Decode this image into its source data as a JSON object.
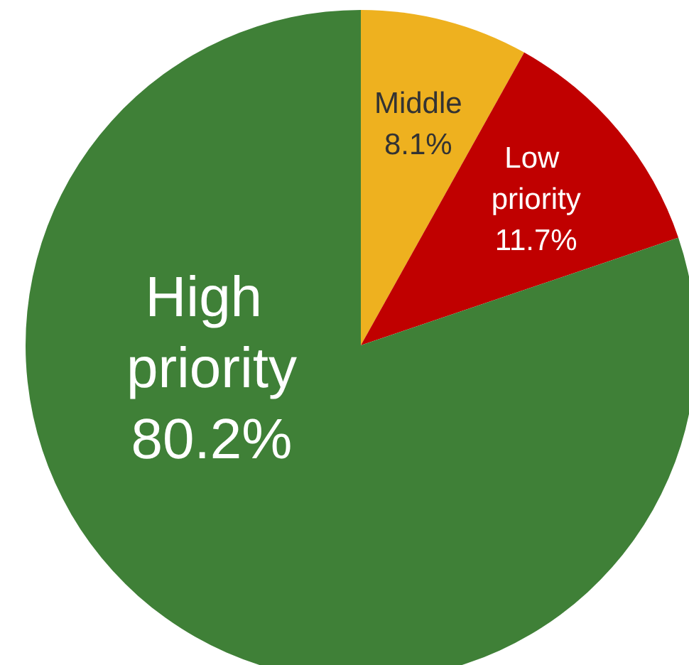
{
  "chart_data": {
    "type": "pie",
    "categories": [
      "Middle",
      "Low priority",
      "High priority"
    ],
    "values": [
      8.1,
      11.7,
      80.2
    ],
    "value_labels": [
      "8.1%",
      "11.7%",
      "80.2%"
    ],
    "colors": [
      "#eeb11f",
      "#c00000",
      "#3f8037"
    ]
  }
}
